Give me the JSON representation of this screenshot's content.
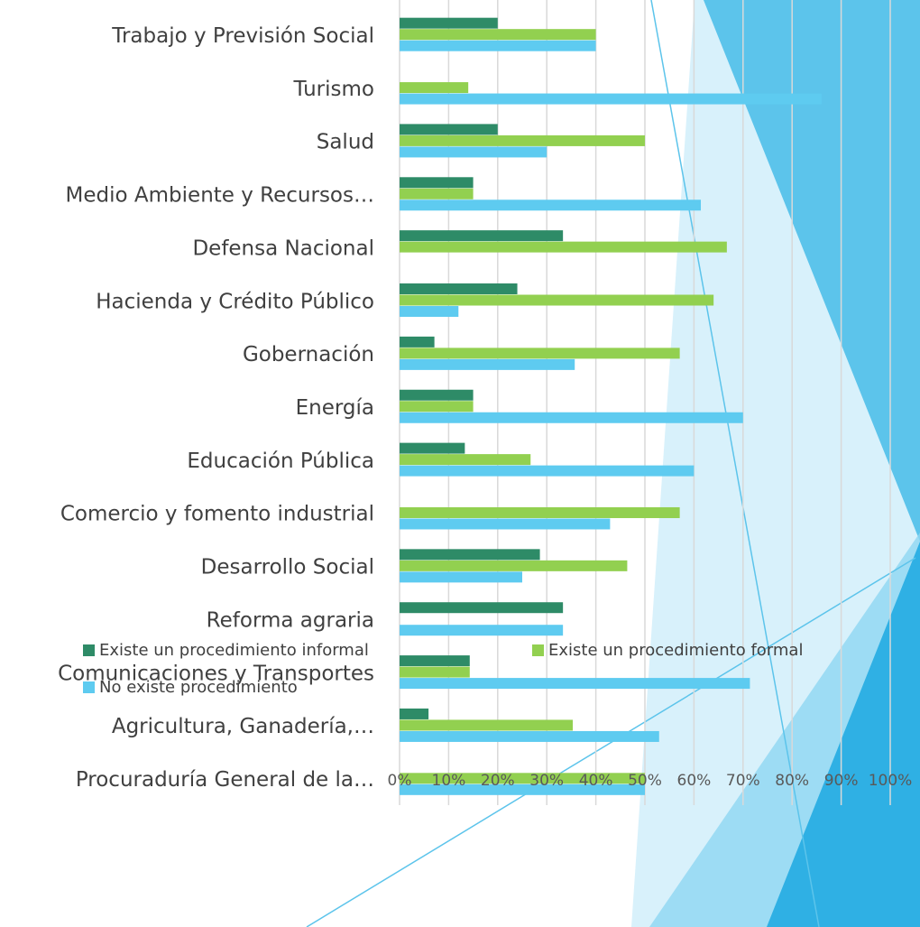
{
  "chart_data": {
    "type": "bar",
    "orientation": "horizontal",
    "categories": [
      "Trabajo y Previsión Social",
      "Turismo",
      "Salud",
      "Medio Ambiente y Recursos…",
      "Defensa Nacional",
      "Hacienda y Crédito Público",
      "Gobernación",
      "Energía",
      "Educación Pública",
      "Comercio y fomento industrial",
      "Desarrollo Social",
      "Reforma agraria",
      "Comunicaciones y Transportes",
      "Agricultura, Ganadería,…",
      "Procuraduría General de la…"
    ],
    "series": [
      {
        "name": "Existe un procedimiento informal",
        "color": "#2e8b67",
        "values": [
          20,
          0,
          20,
          15,
          33.3,
          24,
          7.1,
          15,
          13.3,
          0,
          28.6,
          33.3,
          14.3,
          5.9,
          0
        ]
      },
      {
        "name": "Existe un procedimiento formal",
        "color": "#92d050",
        "values": [
          40,
          14,
          50,
          15,
          66.7,
          64,
          57.1,
          15,
          26.7,
          57.1,
          46.4,
          0,
          14.3,
          35.3,
          50
        ]
      },
      {
        "name": "No existe procedimiento",
        "color": "#5ecbf0",
        "values": [
          40,
          86,
          30,
          61.4,
          0,
          12,
          35.7,
          70,
          60,
          42.9,
          25,
          33.3,
          71.4,
          52.9,
          50
        ]
      }
    ],
    "xlim": [
      0,
      100
    ],
    "xticks": [
      {
        "value": 0,
        "label": "0%"
      },
      {
        "value": 10,
        "label": "10%"
      },
      {
        "value": 20,
        "label": "20%"
      },
      {
        "value": 30,
        "label": "30%"
      },
      {
        "value": 40,
        "label": "40%"
      },
      {
        "value": 50,
        "label": "50%"
      },
      {
        "value": 60,
        "label": "60%"
      },
      {
        "value": 70,
        "label": "70%"
      },
      {
        "value": 80,
        "label": "80%"
      },
      {
        "value": 90,
        "label": "90%"
      },
      {
        "value": 100,
        "label": "100%"
      }
    ],
    "grid": true,
    "legend": "bottom"
  }
}
